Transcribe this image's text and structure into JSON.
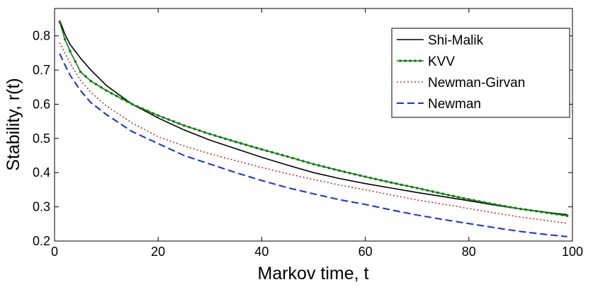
{
  "chart_data": {
    "type": "line",
    "title": "",
    "xlabel": "Markov time, t",
    "ylabel": "Stability, r(t)",
    "xlim": [
      0,
      100
    ],
    "ylim": [
      0.2,
      0.88
    ],
    "xticks": [
      0,
      20,
      40,
      60,
      80,
      100
    ],
    "xtick_labels": [
      "0",
      "20",
      "40",
      "60",
      "80",
      "100"
    ],
    "yticks": [
      0.2,
      0.3,
      0.4,
      0.5,
      0.6,
      0.7,
      0.8
    ],
    "ytick_labels": [
      "0.2",
      "0.3",
      "0.4",
      "0.5",
      "0.6",
      "0.7",
      "0.8"
    ],
    "grid": false,
    "legend_position": "top-right",
    "series": [
      {
        "name": "Shi-Malik",
        "color": "#000000",
        "style": "solid",
        "marker": "none",
        "x": [
          1,
          2,
          3,
          5,
          7,
          10,
          15,
          20,
          25,
          30,
          35,
          40,
          45,
          50,
          55,
          60,
          65,
          70,
          75,
          80,
          85,
          90,
          95,
          99
        ],
        "y": [
          0.845,
          0.805,
          0.775,
          0.735,
          0.7,
          0.655,
          0.6,
          0.56,
          0.525,
          0.495,
          0.47,
          0.445,
          0.422,
          0.4,
          0.383,
          0.368,
          0.355,
          0.342,
          0.33,
          0.318,
          0.305,
          0.294,
          0.284,
          0.277
        ]
      },
      {
        "name": "KVV",
        "color": "#0a7d0a",
        "style": "solid",
        "marker": "dot",
        "x": [
          1,
          2,
          3,
          5,
          7,
          10,
          15,
          20,
          25,
          30,
          35,
          40,
          45,
          50,
          55,
          60,
          65,
          70,
          75,
          80,
          85,
          90,
          95,
          99
        ],
        "y": [
          0.84,
          0.79,
          0.755,
          0.695,
          0.668,
          0.64,
          0.6,
          0.567,
          0.538,
          0.513,
          0.49,
          0.468,
          0.447,
          0.425,
          0.406,
          0.388,
          0.371,
          0.355,
          0.338,
          0.322,
          0.307,
          0.294,
          0.283,
          0.274
        ]
      },
      {
        "name": "Newman-Girvan",
        "color": "#c03030",
        "style": "dotted",
        "marker": "none",
        "x": [
          1,
          2,
          3,
          5,
          7,
          10,
          15,
          20,
          25,
          30,
          35,
          40,
          45,
          50,
          55,
          60,
          65,
          70,
          75,
          80,
          85,
          90,
          95,
          99
        ],
        "y": [
          0.78,
          0.75,
          0.72,
          0.67,
          0.635,
          0.595,
          0.545,
          0.505,
          0.478,
          0.455,
          0.435,
          0.415,
          0.397,
          0.38,
          0.364,
          0.35,
          0.335,
          0.32,
          0.308,
          0.295,
          0.282,
          0.27,
          0.26,
          0.252
        ]
      },
      {
        "name": "Newman",
        "color": "#1030e0",
        "style": "dashed",
        "marker": "none",
        "x": [
          1,
          2,
          3,
          5,
          7,
          10,
          15,
          20,
          25,
          30,
          35,
          40,
          45,
          50,
          55,
          60,
          65,
          70,
          75,
          80,
          85,
          90,
          95,
          99
        ],
        "y": [
          0.748,
          0.715,
          0.685,
          0.64,
          0.605,
          0.57,
          0.52,
          0.485,
          0.45,
          0.425,
          0.4,
          0.377,
          0.356,
          0.338,
          0.321,
          0.307,
          0.291,
          0.276,
          0.263,
          0.251,
          0.239,
          0.228,
          0.219,
          0.213
        ]
      }
    ]
  }
}
